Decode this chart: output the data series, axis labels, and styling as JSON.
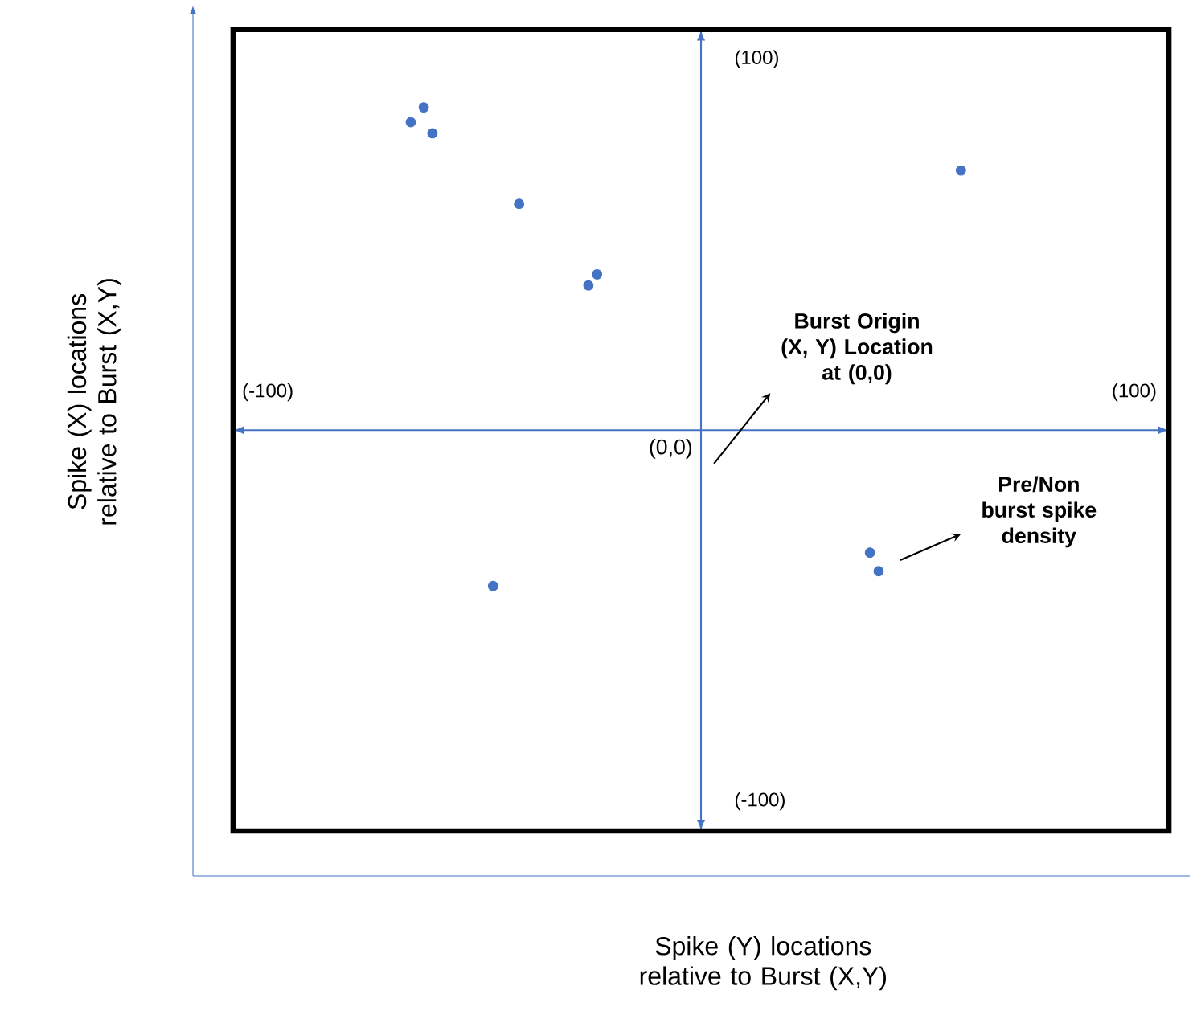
{
  "chart_data": {
    "type": "scatter",
    "xlabel": "Spike (Y) locations relative to Burst (X,Y)",
    "ylabel": "Spike (X) locations relative to Burst (X,Y)",
    "x": [
      -64,
      -67,
      -62,
      -42,
      -24,
      -26,
      60,
      39,
      41,
      -48
    ],
    "values": [
      87,
      83,
      80,
      61,
      42,
      39,
      70,
      -33,
      -38,
      -42
    ],
    "color": "#4472c4",
    "marker": "circle",
    "grid": false,
    "xlim": [
      -108,
      108
    ],
    "ylim": [
      -108,
      108
    ],
    "xticks": [
      {
        "value": -100,
        "label": "(-100)"
      },
      {
        "value": 100,
        "label": "(100)"
      }
    ],
    "yticks": [
      {
        "value": -100,
        "label": "(-100)"
      },
      {
        "value": 100,
        "label": "(100)"
      }
    ],
    "annotations": [
      "**Burst Origin (X, Y) Location at (0,0)**",
      "**Pre/Non burst spike density**",
      "(0,0)"
    ]
  }
}
